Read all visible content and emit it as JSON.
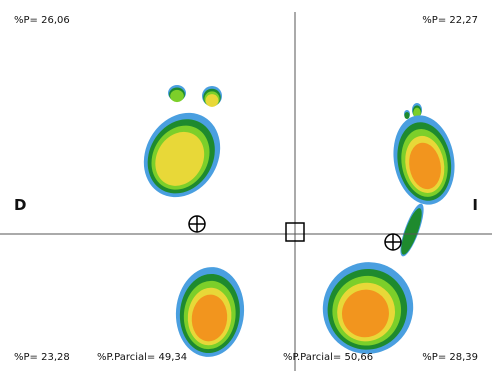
{
  "labels": {
    "top_left": "%P= 26,06",
    "top_right": "%P= 22,27",
    "bottom_left": "%P= 23,28",
    "bottom_left_partial": "%P.Parcial= 49,34",
    "bottom_right_partial": "%P.Parcial= 50,66",
    "bottom_right": "%P= 28,39"
  },
  "sides": {
    "left": "D",
    "right": "I"
  }
}
